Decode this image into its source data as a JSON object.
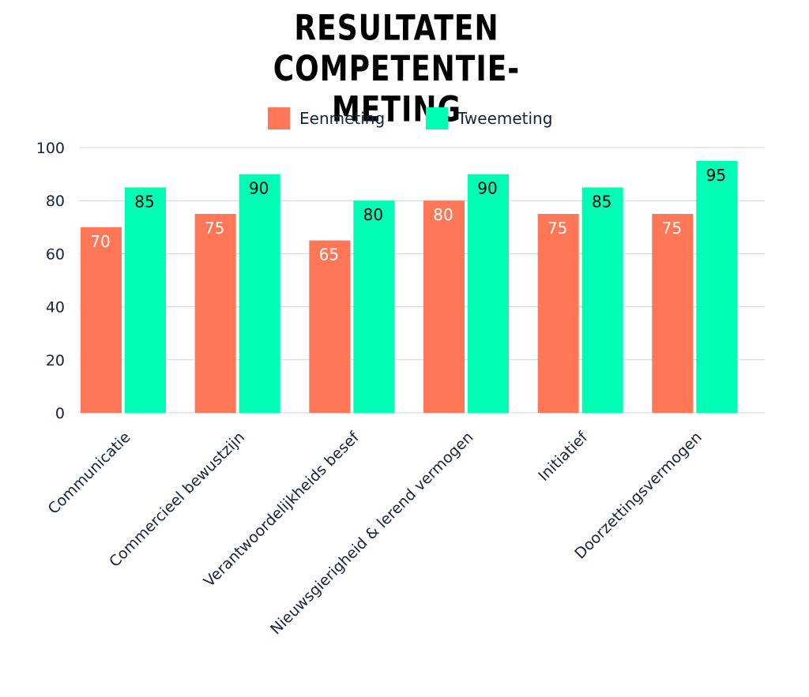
{
  "chart_data": {
    "type": "bar",
    "title": "RESULTATEN COMPETENTIE-\nMETING",
    "categories": [
      "Communicatie",
      "Commercieel bewustzijn",
      "Verantwoordelijkheids besef",
      "Nieuwsgierigheid & lerend vermogen",
      "Initiatief",
      "Doorzettingsvermogen"
    ],
    "series": [
      {
        "name": "Eenmeting",
        "color": "#ff7757",
        "label_color": "#ffffff",
        "values": [
          70,
          75,
          65,
          80,
          75,
          75
        ]
      },
      {
        "name": "Tweemeting",
        "color": "#00fdb5",
        "label_color": "#000000",
        "values": [
          85,
          90,
          80,
          90,
          85,
          95
        ]
      }
    ],
    "ylim": [
      0,
      100
    ],
    "yticks": [
      0,
      20,
      40,
      60,
      80,
      100
    ],
    "xlabel": "",
    "ylabel": "",
    "grid": true,
    "legend": "top-center"
  }
}
